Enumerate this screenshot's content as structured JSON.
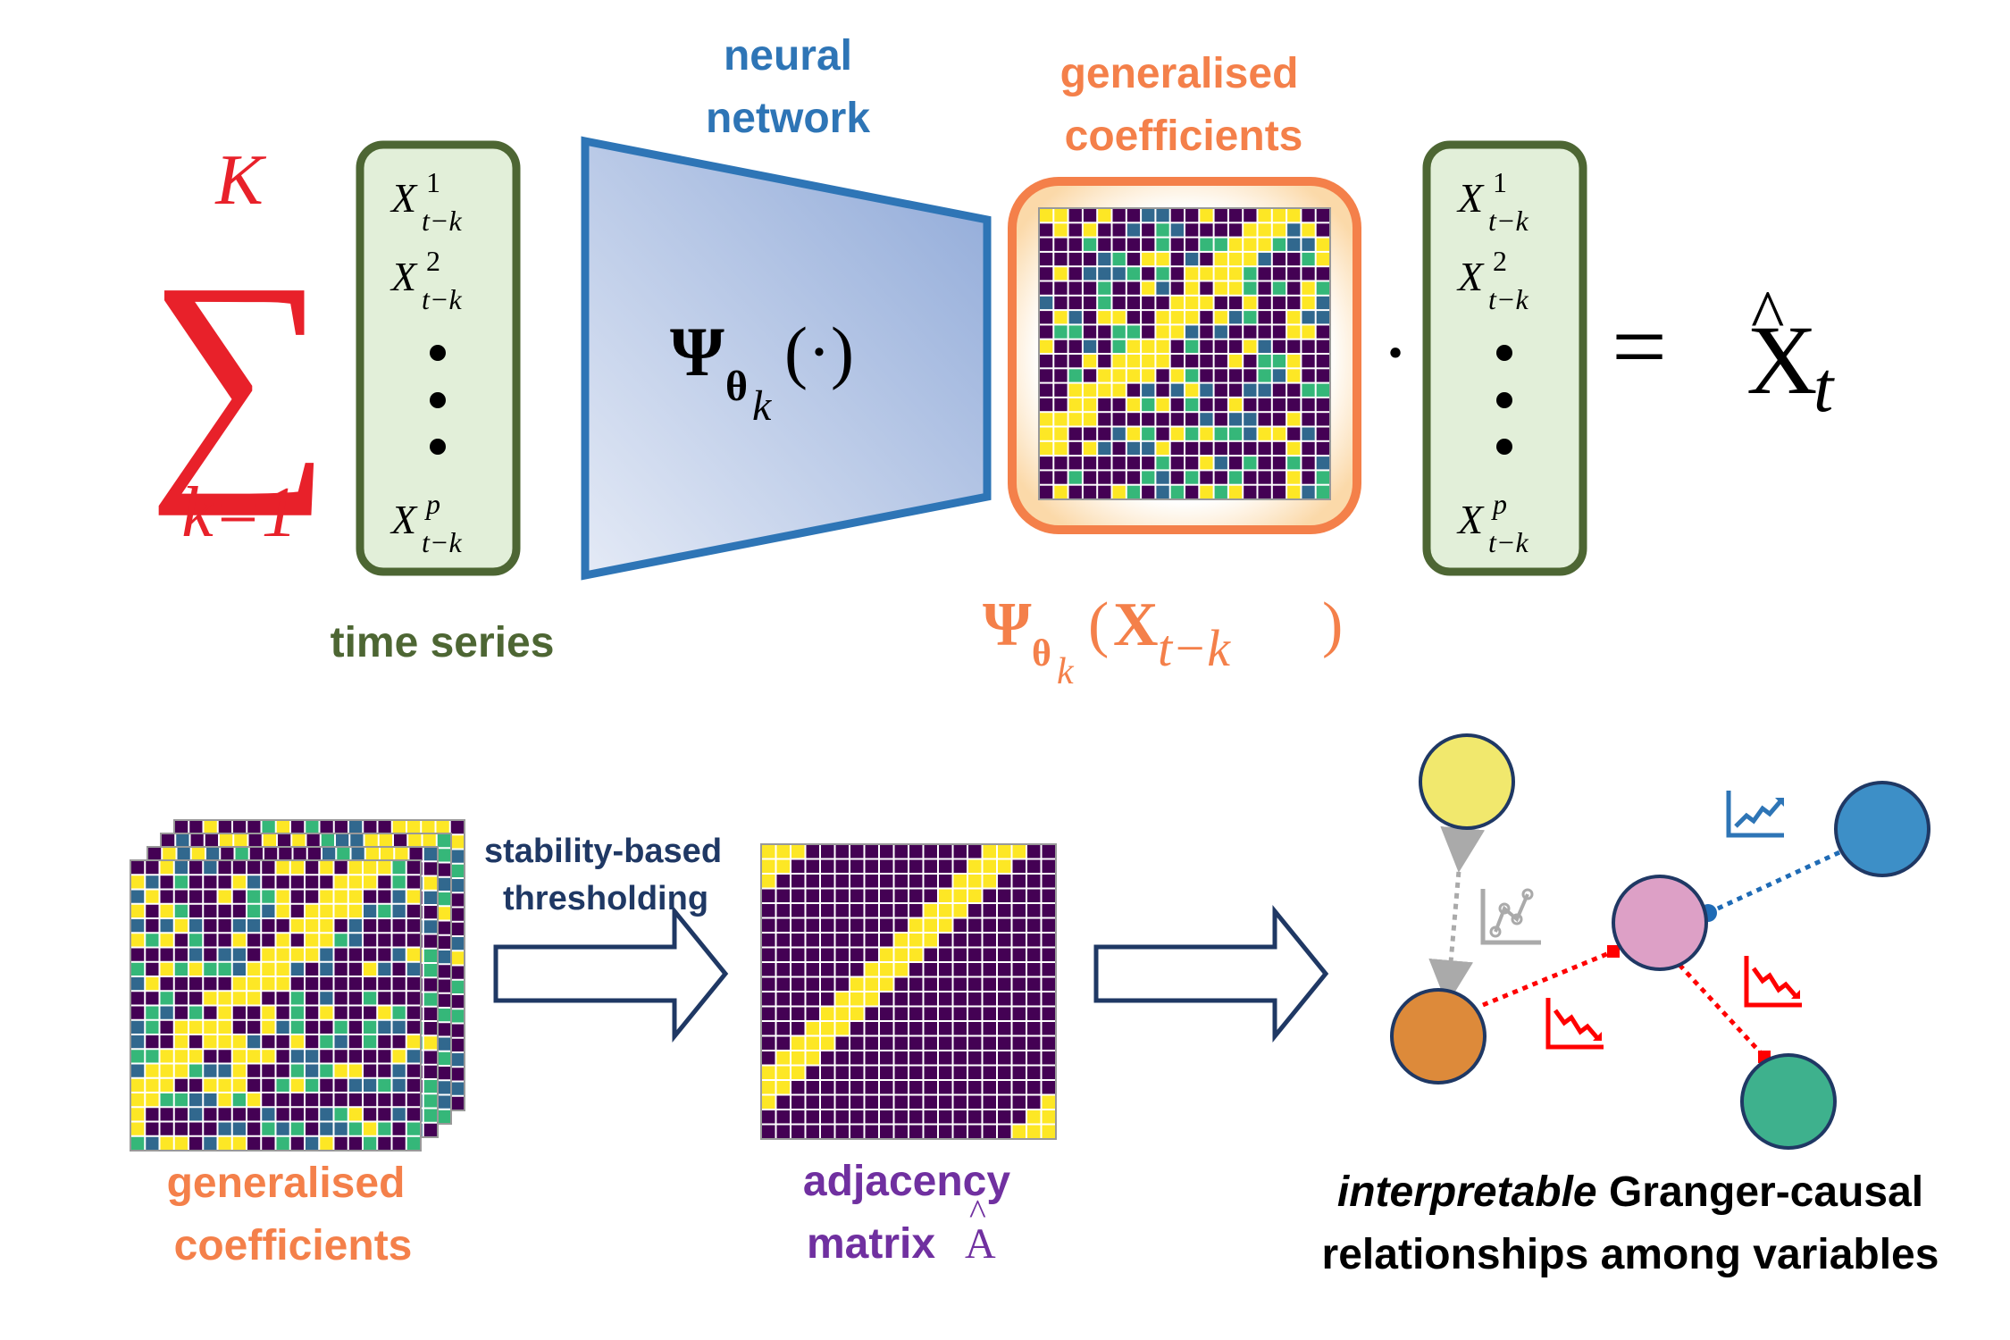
{
  "top_row": {
    "sum_upper": "K",
    "sum_sigma": "∑",
    "sum_lower": "k=1",
    "time_series_label": "time series",
    "nn_label_line1": "neural",
    "nn_label_line2": "network",
    "gc_label_line1": "generalised",
    "gc_label_line2": "coefficients",
    "psi_symbol": "Ψ",
    "theta_sub": "θ",
    "k_sub": "k",
    "psi_arg": "(·)",
    "psi_full_arg_open": "(",
    "psi_full_X": "X",
    "psi_full_sub": "t−k",
    "psi_full_arg_close": ")",
    "vec_entries": [
      {
        "base": "X",
        "sup": "1",
        "sub": "t−k"
      },
      {
        "base": "X",
        "sup": "2",
        "sub": "t−k"
      },
      {
        "base": "X",
        "sup": "p",
        "sub": "t−k"
      }
    ],
    "dot_operator": "·",
    "equals": "=",
    "xhat_base": "X",
    "xhat_hat": "^",
    "xhat_sub": "t"
  },
  "bottom_row": {
    "gc_label_line1": "generalised",
    "gc_label_line2": "coefficients",
    "step_label_line1": "stability-based",
    "step_label_line2": "thresholding",
    "adj_label_line1": "adjacency",
    "adj_label_line2": "matrix",
    "adj_symbol": "A",
    "result_label_line1_italic": "interpretable",
    "result_label_line1_rest": " Granger-causal",
    "result_label_line2": "relationships among variables"
  },
  "colors": {
    "red": "#ff0000",
    "sum_red": "#e8212a",
    "green_dark": "#4d6633",
    "green_fill": "#e2efd9",
    "blue_dark": "#2e75b6",
    "orange": "#f4804a",
    "purple": "#7030a0",
    "navy": "#1f3864",
    "viridis_dark": "#440154",
    "viridis_blue": "#31688e",
    "viridis_teal": "#35b779",
    "viridis_yellow": "#fde725",
    "node_yellow": "#f1e86d",
    "node_blue": "#3d8fc7",
    "node_pink": "#dda0c6",
    "node_orange": "#dd8a3a",
    "node_green": "#3eb18d"
  },
  "graph_nodes": [
    "yellow-node",
    "blue-node",
    "pink-node",
    "orange-node",
    "green-node"
  ],
  "graph_icons": [
    "chart-up-icon",
    "scatter-chart-icon",
    "chart-down-icon",
    "chart-down-icon",
    "chart-down-icon"
  ]
}
